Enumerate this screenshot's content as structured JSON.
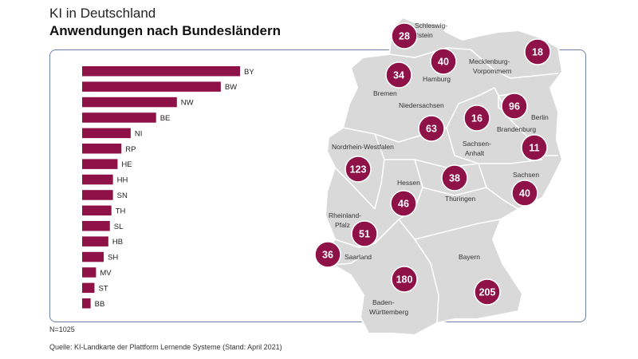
{
  "header": {
    "title": "KI in Deutschland",
    "subtitle": "Anwendungen nach Bundesländern"
  },
  "footer": {
    "n_label": "N=1025",
    "source": "Quelle: KI-Landkarte der Plattform Lernende Systeme (Stand: April 2021)"
  },
  "colors": {
    "bar": "#8e1148",
    "bubble": "#8e1148",
    "bubble_text": "#ffffff",
    "map_fill": "#d9d9d9",
    "map_border": "#ffffff",
    "frame": "#6d7fa6"
  },
  "chart_data": [
    {
      "type": "bar",
      "orientation": "horizontal",
      "categories": [
        "BY",
        "BW",
        "NW",
        "BE",
        "NI",
        "RP",
        "HE",
        "HH",
        "SN",
        "TH",
        "SL",
        "HB",
        "SH",
        "MV",
        "ST",
        "BB"
      ],
      "values": [
        205,
        180,
        123,
        96,
        63,
        51,
        46,
        40,
        40,
        38,
        36,
        34,
        28,
        18,
        16,
        11
      ]
    },
    {
      "type": "map",
      "regions": [
        {
          "name": "Schleswig-Holstein",
          "value": 28
        },
        {
          "name": "Hamburg",
          "value": 40
        },
        {
          "name": "Mecklenburg-Vorpommern",
          "value": 18
        },
        {
          "name": "Bremen",
          "value": 34
        },
        {
          "name": "Niedersachsen",
          "value": 63
        },
        {
          "name": "Berlin",
          "value": 96
        },
        {
          "name": "Sachsen-Anhalt",
          "value": 16
        },
        {
          "name": "Brandenburg",
          "value": 11
        },
        {
          "name": "Nordrhein-Westfalen",
          "value": 123
        },
        {
          "name": "Sachsen",
          "value": 40
        },
        {
          "name": "Hessen",
          "value": 46
        },
        {
          "name": "Thüringen",
          "value": 38
        },
        {
          "name": "Rheinland-Pfalz",
          "value": 51
        },
        {
          "name": "Saarland",
          "value": 36
        },
        {
          "name": "Bayern",
          "value": 205
        },
        {
          "name": "Baden-Württemberg",
          "value": 180
        }
      ]
    }
  ]
}
